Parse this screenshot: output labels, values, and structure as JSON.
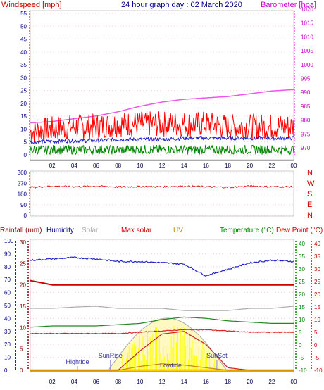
{
  "chart_data": [
    {
      "type": "line",
      "title": "24 hour graph day : 02 March 2020",
      "ylabel_left": "Windspeed [mph]",
      "ylabel_right": "Barometer [hpa]",
      "ylim_left": [
        0,
        55
      ],
      "ylim_right": [
        970,
        1020
      ],
      "yticks_left": [
        "0",
        "5",
        "10",
        "15",
        "20",
        "25",
        "30",
        "35",
        "40",
        "45",
        "50",
        "55"
      ],
      "yticks_right": [
        "970",
        "975",
        "980",
        "985",
        "990",
        "995",
        "1000",
        "1005",
        "1010",
        "1015",
        "1020"
      ],
      "x": [
        0,
        2,
        4,
        6,
        8,
        10,
        12,
        14,
        16,
        18,
        20,
        22,
        24
      ],
      "xticks": [
        "02",
        "04",
        "06",
        "08",
        "10",
        "12",
        "14",
        "16",
        "18",
        "20",
        "22",
        "00"
      ],
      "series": [
        {
          "name": "Barometer",
          "axis": "right",
          "values": [
            979,
            979.5,
            980.5,
            981.5,
            983,
            985,
            986.5,
            987.5,
            988,
            988.5,
            989.5,
            990.5,
            991
          ]
        },
        {
          "name": "Windspeed",
          "axis": "left",
          "values": [
            9,
            10,
            11,
            11,
            12,
            12,
            12,
            12,
            12,
            11,
            11,
            11,
            11
          ]
        },
        {
          "name": "Windspeed avg",
          "axis": "left",
          "values": [
            5,
            5.2,
            5.5,
            5.5,
            6,
            6,
            6,
            6.5,
            6.5,
            6.5,
            6.5,
            6.5,
            6.5
          ]
        },
        {
          "name": "Windspeed low",
          "axis": "left",
          "values": [
            2,
            2,
            2,
            2,
            2,
            2,
            2,
            2,
            2,
            2,
            2,
            2,
            2
          ]
        }
      ],
      "line_colors": {
        "barometer": "#ee55ee",
        "wind": "#ff0000",
        "avg": "#2222cc",
        "low": "#008800"
      }
    },
    {
      "type": "line",
      "title": "",
      "ylabel_right": "N W S E N",
      "ylim": [
        0,
        360
      ],
      "yticks": [
        "0",
        "90",
        "180",
        "270",
        "360"
      ],
      "compass": [
        "N",
        "W",
        "S",
        "E",
        "N"
      ],
      "x": [
        0,
        2,
        4,
        6,
        8,
        10,
        12,
        14,
        16,
        18,
        20,
        22,
        24
      ],
      "series": [
        {
          "name": "Wind direction",
          "values": [
            235,
            245,
            240,
            245,
            238,
            242,
            240,
            245,
            240,
            235,
            245,
            240,
            240
          ]
        }
      ]
    },
    {
      "type": "line",
      "title": "",
      "legend": [
        "Rainfall (mm)",
        "Humidity",
        "Solar",
        "Max solar",
        "UV",
        "Temperature (°C)",
        "Dew Point (°C)"
      ],
      "legend_colors": [
        "#880000",
        "#000088",
        "#aaaaaa",
        "#cc0000",
        "#cc8800",
        "#008800",
        "#cc0000"
      ],
      "yticks_humidity": [
        "0",
        "10",
        "20",
        "30",
        "40",
        "50",
        "60",
        "70",
        "80",
        "90",
        "100"
      ],
      "yticks_rain": [
        "0",
        "5",
        "10",
        "15",
        "20",
        "25",
        "30"
      ],
      "yticks_temp": [
        "-10",
        "-5",
        "0",
        "5",
        "10",
        "15",
        "20",
        "25",
        "30",
        "35",
        "40"
      ],
      "annotations": [
        "Hightide",
        "SunRise",
        "Lowtide",
        "SunSet"
      ],
      "x": [
        0,
        2,
        4,
        6,
        8,
        10,
        12,
        14,
        16,
        18,
        20,
        22,
        24
      ],
      "series": [
        {
          "name": "Humidity",
          "scale": "humidity",
          "values": [
            85,
            86,
            87,
            86,
            84,
            84,
            83,
            82,
            73,
            78,
            83,
            85,
            84
          ]
        },
        {
          "name": "Temperature",
          "scale": "temp",
          "values": [
            7,
            7.5,
            7.5,
            7.5,
            8,
            8.5,
            10,
            11,
            10.5,
            9.5,
            9,
            8.5,
            8.5
          ]
        },
        {
          "name": "Dew Point",
          "scale": "temp",
          "values": [
            4.5,
            4.5,
            4.5,
            4.5,
            4.5,
            5,
            5.5,
            6,
            6,
            5.5,
            5,
            5,
            5
          ]
        },
        {
          "name": "Rainfall",
          "scale": "rain",
          "values": [
            21,
            20,
            20,
            20,
            20,
            20,
            20,
            20,
            20,
            20,
            20,
            20,
            20
          ]
        },
        {
          "name": "Solar",
          "scale": "rain",
          "values": [
            14.5,
            14.5,
            14.8,
            15,
            14.5,
            14.5,
            14.5,
            14,
            14,
            14,
            14.5,
            14.5,
            15
          ]
        },
        {
          "name": "Max solar",
          "scale": "humidity",
          "values": [
            0,
            0,
            0,
            0,
            0,
            15,
            28,
            30,
            20,
            2,
            0,
            0,
            0
          ]
        },
        {
          "name": "UV",
          "scale": "humidity",
          "values": [
            0,
            0,
            0,
            0,
            0,
            3,
            5,
            4,
            2,
            0,
            0,
            0,
            0
          ]
        }
      ]
    }
  ]
}
